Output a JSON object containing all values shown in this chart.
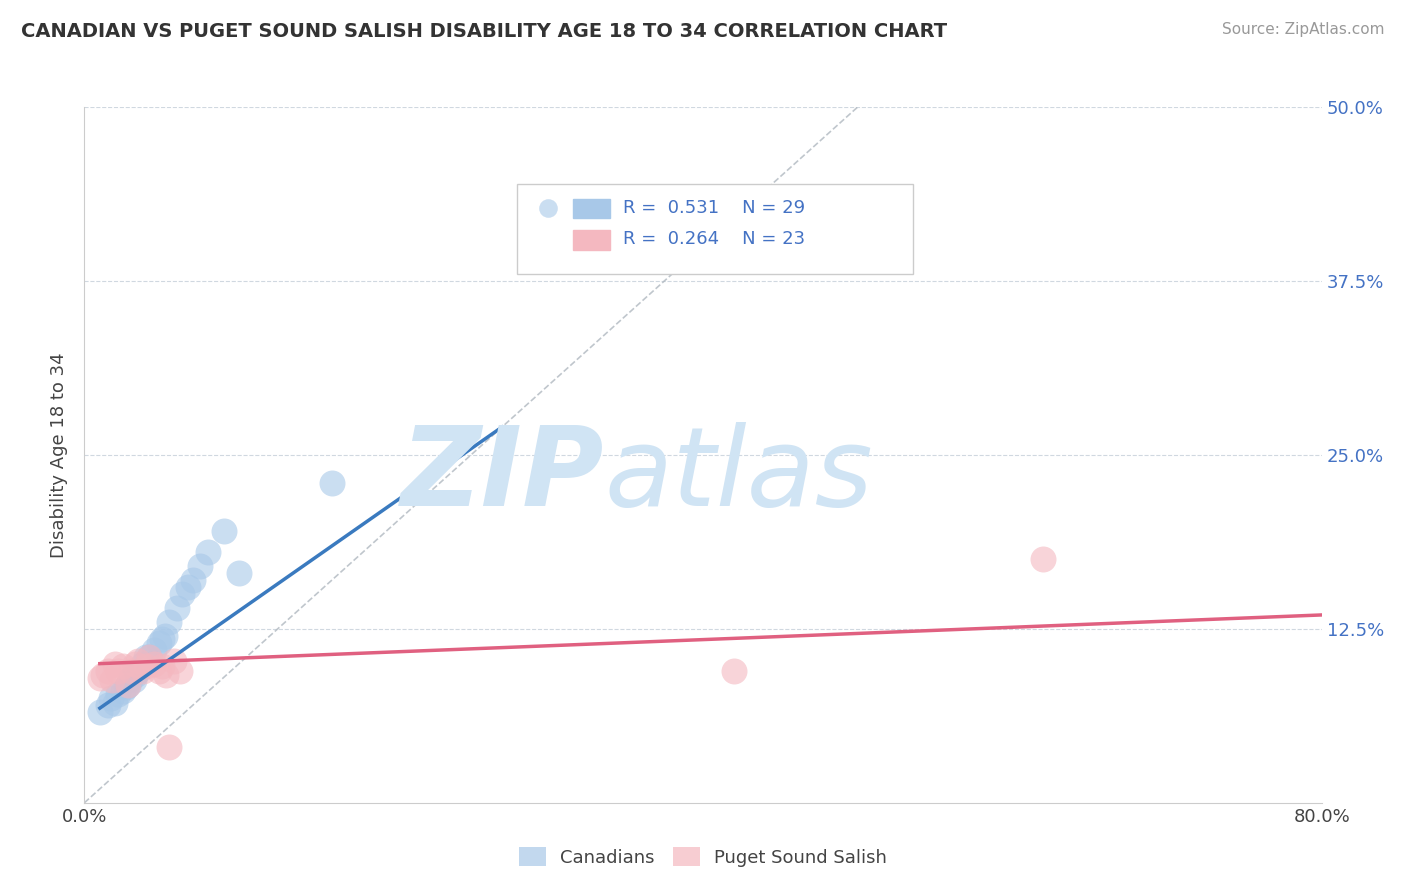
{
  "title": "CANADIAN VS PUGET SOUND SALISH DISABILITY AGE 18 TO 34 CORRELATION CHART",
  "source": "Source: ZipAtlas.com",
  "ylabel": "Disability Age 18 to 34",
  "xlim": [
    0.0,
    0.8
  ],
  "ylim": [
    0.0,
    0.5
  ],
  "xtick_positions": [
    0.0,
    0.2,
    0.4,
    0.6,
    0.8
  ],
  "xtick_labels": [
    "0.0%",
    "",
    "",
    "",
    "80.0%"
  ],
  "ytick_positions": [
    0.0,
    0.125,
    0.25,
    0.375,
    0.5
  ],
  "ytick_labels_right": [
    "",
    "12.5%",
    "25.0%",
    "37.5%",
    "50.0%"
  ],
  "R_canadian": 0.531,
  "N_canadian": 29,
  "R_puget": 0.264,
  "N_puget": 23,
  "canadian_scatter_color": "#a8c8e8",
  "puget_scatter_color": "#f4b8c0",
  "canadian_line_color": "#3a7abf",
  "puget_line_color": "#e06080",
  "watermark_zip": "ZIP",
  "watermark_atlas": "atlas",
  "watermark_color": "#d0e4f4",
  "background_color": "#ffffff",
  "canadians_x": [
    0.01,
    0.015,
    0.017,
    0.02,
    0.022,
    0.025,
    0.027,
    0.028,
    0.03,
    0.032,
    0.033,
    0.035,
    0.038,
    0.04,
    0.042,
    0.045,
    0.048,
    0.05,
    0.052,
    0.055,
    0.06,
    0.063,
    0.067,
    0.07,
    0.075,
    0.08,
    0.09,
    0.1,
    0.16
  ],
  "canadians_y": [
    0.065,
    0.07,
    0.075,
    0.072,
    0.078,
    0.08,
    0.083,
    0.085,
    0.09,
    0.088,
    0.092,
    0.095,
    0.1,
    0.105,
    0.105,
    0.11,
    0.115,
    0.118,
    0.12,
    0.13,
    0.14,
    0.15,
    0.155,
    0.16,
    0.17,
    0.18,
    0.195,
    0.165,
    0.23
  ],
  "puget_x": [
    0.01,
    0.012,
    0.015,
    0.018,
    0.02,
    0.022,
    0.025,
    0.028,
    0.03,
    0.033,
    0.035,
    0.038,
    0.04,
    0.042,
    0.045,
    0.048,
    0.05,
    0.053,
    0.055,
    0.058,
    0.062,
    0.42,
    0.62
  ],
  "puget_y": [
    0.09,
    0.092,
    0.095,
    0.088,
    0.1,
    0.095,
    0.098,
    0.085,
    0.095,
    0.1,
    0.102,
    0.095,
    0.098,
    0.105,
    0.1,
    0.095,
    0.098,
    0.092,
    0.04,
    0.102,
    0.095,
    0.095,
    0.175
  ],
  "canadian_trend_x": [
    0.01,
    0.27
  ],
  "canadian_trend_y_start": 0.068,
  "canadian_trend_y_end": 0.27,
  "puget_trend_x": [
    0.01,
    0.8
  ],
  "puget_trend_y_start": 0.1,
  "puget_trend_y_end": 0.135
}
